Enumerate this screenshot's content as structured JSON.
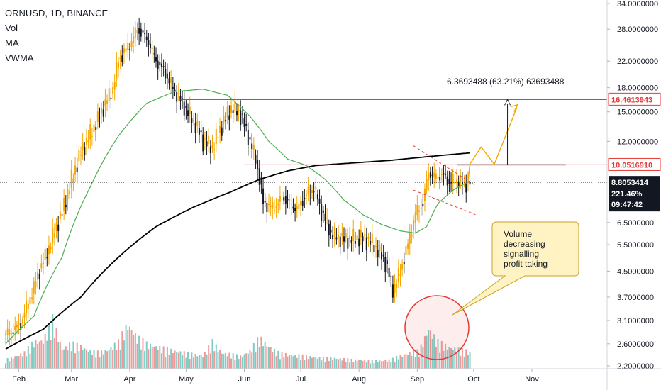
{
  "legend": {
    "symbol": "ORNUSD, 1D, BINANCE",
    "vol": "Vol",
    "ma": "MA",
    "vwma": "VWMA"
  },
  "chart_data": {
    "type": "candlestick",
    "scale": "log",
    "ylim": [
      2.2,
      34
    ],
    "x_ticks": [
      "Feb",
      "Mar",
      "Apr",
      "May",
      "Jun",
      "Jul",
      "Aug",
      "Sep",
      "Oct",
      "Nov"
    ],
    "y_ticks": [
      "34.0000000",
      "28.0000000",
      "22.0000000",
      "18.0000000",
      "15.0000000",
      "12.0000000",
      "6.5000000",
      "5.5000000",
      "4.5000000",
      "3.7000000",
      "3.1000000",
      "2.6000000",
      "2.2000000"
    ],
    "y_tick_values": [
      34,
      28,
      22,
      18,
      15,
      12,
      6.5,
      5.5,
      4.5,
      3.7,
      3.1,
      2.6,
      2.2
    ],
    "price_points": [
      [
        0,
        2.8
      ],
      [
        8,
        3.0
      ],
      [
        15,
        4.0
      ],
      [
        22,
        5.2
      ],
      [
        30,
        7.0
      ],
      [
        40,
        11.0
      ],
      [
        50,
        14.5
      ],
      [
        57,
        18.0
      ],
      [
        60,
        22.0
      ],
      [
        66,
        25.0
      ],
      [
        70,
        28.0
      ],
      [
        76,
        25.5
      ],
      [
        80,
        22.0
      ],
      [
        85,
        20.0
      ],
      [
        90,
        17.5
      ],
      [
        95,
        15.5
      ],
      [
        100,
        14.0
      ],
      [
        105,
        12.0
      ],
      [
        110,
        11.5
      ],
      [
        115,
        13.5
      ],
      [
        120,
        15.5
      ],
      [
        124,
        15.0
      ],
      [
        128,
        13.0
      ],
      [
        133,
        10.5
      ],
      [
        137,
        7.5
      ],
      [
        142,
        7.3
      ],
      [
        148,
        7.8
      ],
      [
        155,
        7.2
      ],
      [
        160,
        8.0
      ],
      [
        164,
        8.5
      ],
      [
        168,
        7.0
      ],
      [
        173,
        6.0
      ],
      [
        180,
        5.7
      ],
      [
        188,
        5.8
      ],
      [
        195,
        5.6
      ],
      [
        202,
        4.8
      ],
      [
        206,
        3.9
      ],
      [
        210,
        4.5
      ],
      [
        214,
        5.5
      ],
      [
        218,
        7.0
      ],
      [
        222,
        7.5
      ],
      [
        225,
        9.5
      ],
      [
        228,
        9.2
      ],
      [
        232,
        9.3
      ],
      [
        236,
        8.8
      ],
      [
        240,
        9.0
      ],
      [
        244,
        8.6
      ],
      [
        247,
        8.8
      ]
    ],
    "ma_points": [
      [
        0,
        2.6
      ],
      [
        15,
        3.2
      ],
      [
        30,
        5.0
      ],
      [
        45,
        8.5
      ],
      [
        60,
        12.5
      ],
      [
        75,
        16.0
      ],
      [
        90,
        17.5
      ],
      [
        105,
        17.8
      ],
      [
        118,
        17.0
      ],
      [
        130,
        14.5
      ],
      [
        140,
        12.0
      ],
      [
        150,
        10.5
      ],
      [
        160,
        10.0
      ],
      [
        170,
        9.0
      ],
      [
        180,
        7.7
      ],
      [
        190,
        6.9
      ],
      [
        200,
        6.4
      ],
      [
        210,
        6.1
      ],
      [
        218,
        6.0
      ],
      [
        224,
        6.3
      ],
      [
        230,
        7.5
      ],
      [
        238,
        8.3
      ],
      [
        247,
        8.9
      ]
    ],
    "vwma_points": [
      [
        0,
        2.5
      ],
      [
        20,
        2.9
      ],
      [
        40,
        3.7
      ],
      [
        60,
        5.0
      ],
      [
        80,
        6.3
      ],
      [
        100,
        7.3
      ],
      [
        120,
        8.2
      ],
      [
        135,
        9.0
      ],
      [
        150,
        9.6
      ],
      [
        165,
        10.0
      ],
      [
        185,
        10.2
      ],
      [
        205,
        10.4
      ],
      [
        225,
        10.7
      ],
      [
        247,
        11.0
      ]
    ],
    "volume_points": [
      [
        0,
        0.1
      ],
      [
        5,
        0.14
      ],
      [
        10,
        0.18
      ],
      [
        15,
        0.3
      ],
      [
        20,
        0.32
      ],
      [
        25,
        0.55
      ],
      [
        30,
        0.22
      ],
      [
        35,
        0.28
      ],
      [
        40,
        0.25
      ],
      [
        45,
        0.2
      ],
      [
        50,
        0.18
      ],
      [
        55,
        0.22
      ],
      [
        60,
        0.3
      ],
      [
        65,
        0.5
      ],
      [
        70,
        0.35
      ],
      [
        75,
        0.28
      ],
      [
        80,
        0.25
      ],
      [
        85,
        0.22
      ],
      [
        90,
        0.2
      ],
      [
        95,
        0.18
      ],
      [
        100,
        0.16
      ],
      [
        105,
        0.15
      ],
      [
        110,
        0.3
      ],
      [
        115,
        0.18
      ],
      [
        120,
        0.16
      ],
      [
        125,
        0.14
      ],
      [
        130,
        0.2
      ],
      [
        135,
        0.35
      ],
      [
        140,
        0.25
      ],
      [
        145,
        0.18
      ],
      [
        150,
        0.16
      ],
      [
        155,
        0.15
      ],
      [
        160,
        0.14
      ],
      [
        165,
        0.13
      ],
      [
        170,
        0.12
      ],
      [
        175,
        0.12
      ],
      [
        180,
        0.11
      ],
      [
        185,
        0.1
      ],
      [
        190,
        0.1
      ],
      [
        195,
        0.09
      ],
      [
        200,
        0.09
      ],
      [
        205,
        0.1
      ],
      [
        210,
        0.15
      ],
      [
        215,
        0.18
      ],
      [
        220,
        0.2
      ],
      [
        225,
        0.45
      ],
      [
        230,
        0.3
      ],
      [
        235,
        0.25
      ],
      [
        240,
        0.22
      ],
      [
        245,
        0.2
      ],
      [
        247,
        0.18
      ]
    ],
    "resistance_high": "16.4613943",
    "resistance_mid": "10.0516910",
    "last_price": "8.8053414",
    "change_percent": "221.46%",
    "countdown": "09:47:42",
    "measure_label": "6.3693488 (63.21%) 63693488",
    "note": [
      "Volume",
      "decreasing",
      "signalling",
      "profit taking"
    ],
    "colors": {
      "up": "#f7a600",
      "down": "#131722",
      "ma": "#4caf50",
      "vwma": "#000000",
      "resistance": "#e53935",
      "projection": "#f7a600",
      "volume_up": "#80cbc4",
      "volume_down": "#ef9a9a"
    }
  }
}
